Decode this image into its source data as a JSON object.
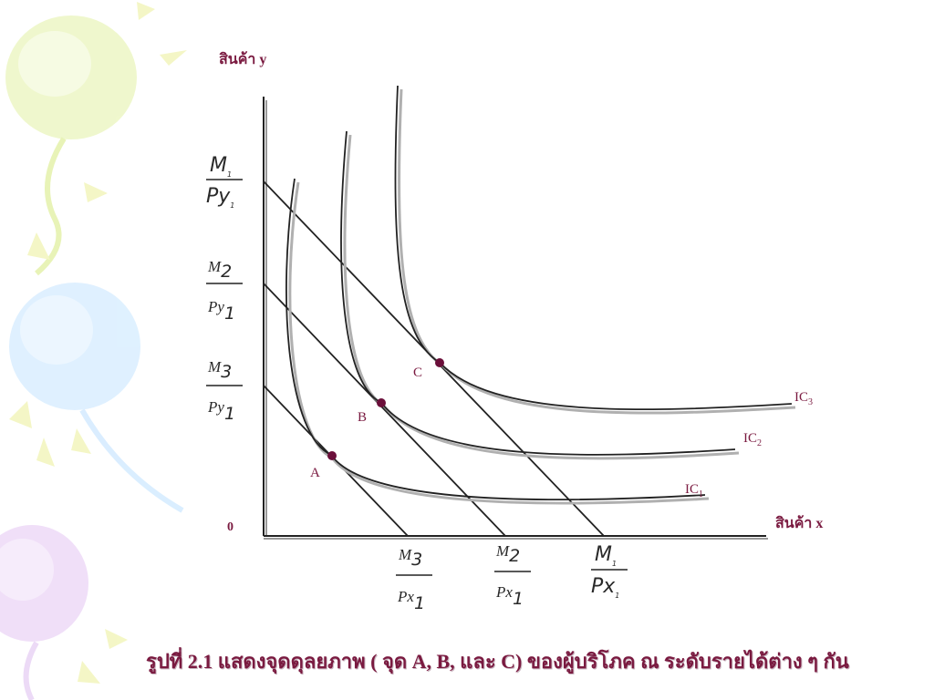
{
  "axes": {
    "y_label": "สินค้า y",
    "x_label": "สินค้า x",
    "origin": "0"
  },
  "budget_lines": [
    {
      "name": "M1",
      "y_intercept": {
        "num": "M",
        "num_sub": "1",
        "den": "Py",
        "den_sub": "1"
      },
      "x_intercept": {
        "num": "M",
        "num_sub": "1",
        "den": "Px",
        "den_sub": "1"
      }
    },
    {
      "name": "M2",
      "y_intercept": {
        "num": "M",
        "num_sub": "2",
        "den": "Py",
        "den_sub": "1"
      },
      "x_intercept": {
        "num": "M",
        "num_sub": "2",
        "den": "Px",
        "den_sub": "1"
      }
    },
    {
      "name": "M3",
      "y_intercept": {
        "num": "M",
        "num_sub": "3",
        "den": "Py",
        "den_sub": "1"
      },
      "x_intercept": {
        "num": "M",
        "num_sub": "3",
        "den": "Px",
        "den_sub": "1"
      }
    }
  ],
  "indifference_curves": [
    {
      "label": "IC",
      "sub": "1"
    },
    {
      "label": "IC",
      "sub": "2"
    },
    {
      "label": "IC",
      "sub": "3"
    }
  ],
  "points": [
    {
      "label": "A"
    },
    {
      "label": "B"
    },
    {
      "label": "C"
    }
  ],
  "caption": "รูปที่ 2.1  แสดงจุดดุลยภาพ ( จุด A, B, และ C)  ของผู้บริโภค ณ ระดับรายได้ต่าง ๆ กัน",
  "colors": {
    "accent": "#7a1a40",
    "line": "#222222",
    "point": "#6b0f3a"
  }
}
